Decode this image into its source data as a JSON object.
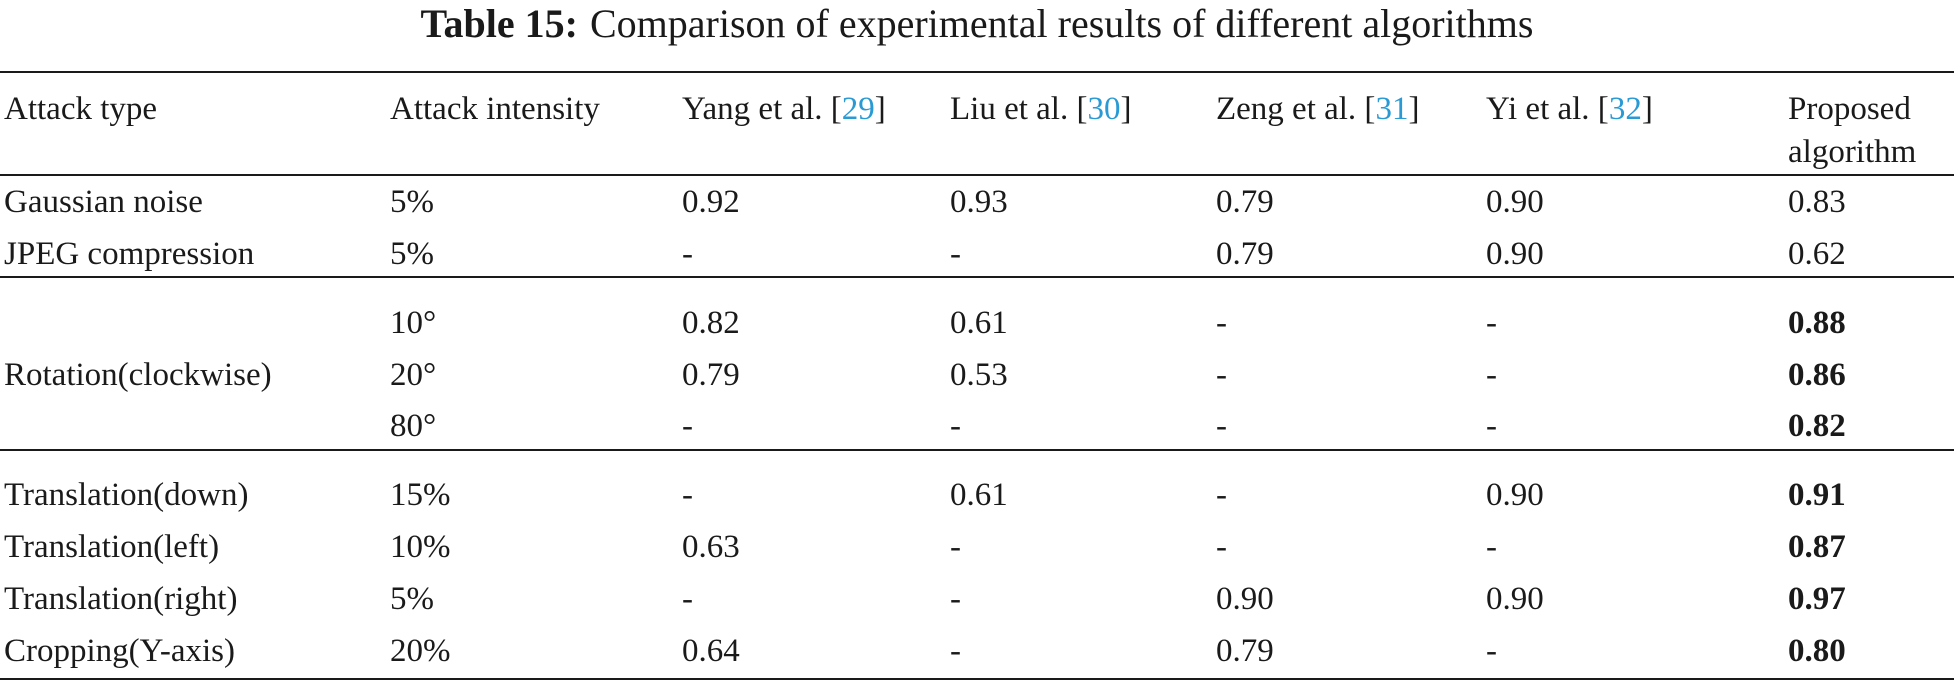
{
  "caption": {
    "label": "Table 15:",
    "text": "Comparison of experimental results of different algorithms"
  },
  "header": {
    "attack_type": "Attack type",
    "attack_intensity": "Attack intensity",
    "yang": {
      "name": "Yang et al. [",
      "ref": "29",
      "close": "]"
    },
    "liu": {
      "name": "Liu et al. [",
      "ref": "30",
      "close": "]"
    },
    "zeng": {
      "name": "Zeng et al. [",
      "ref": "31",
      "close": "]"
    },
    "yi": {
      "name": "Yi et al. [",
      "ref": "32",
      "close": "]"
    },
    "proposed_line1": "Proposed",
    "proposed_line2": "algorithm"
  },
  "rows": [
    {
      "type": "Gaussian noise",
      "intensity": "5%",
      "yang": "0.92",
      "liu": "0.93",
      "zeng": "0.79",
      "yi": "0.90",
      "proposed": "0.83",
      "proposed_bold": false
    },
    {
      "type": "JPEG compression",
      "intensity": "5%",
      "yang": "-",
      "liu": "-",
      "zeng": "0.79",
      "yi": "0.90",
      "proposed": "0.62",
      "proposed_bold": false
    },
    {
      "type": "",
      "intensity": "10°",
      "yang": "0.82",
      "liu": "0.61",
      "zeng": "-",
      "yi": "-",
      "proposed": "0.88",
      "proposed_bold": true
    },
    {
      "type": "Rotation(clockwise)",
      "intensity": "20°",
      "yang": "0.79",
      "liu": "0.53",
      "zeng": "-",
      "yi": "-",
      "proposed": "0.86",
      "proposed_bold": true
    },
    {
      "type": "",
      "intensity": "80°",
      "yang": "-",
      "liu": "-",
      "zeng": "-",
      "yi": "-",
      "proposed": "0.82",
      "proposed_bold": true
    },
    {
      "type": "Translation(down)",
      "intensity": "15%",
      "yang": "-",
      "liu": "0.61",
      "zeng": "-",
      "yi": "0.90",
      "proposed": "0.91",
      "proposed_bold": true
    },
    {
      "type": "Translation(left)",
      "intensity": "10%",
      "yang": "0.63",
      "liu": "-",
      "zeng": "-",
      "yi": "-",
      "proposed": "0.87",
      "proposed_bold": true
    },
    {
      "type": "Translation(right)",
      "intensity": "5%",
      "yang": "-",
      "liu": "-",
      "zeng": "0.90",
      "yi": "0.90",
      "proposed": "0.97",
      "proposed_bold": true
    },
    {
      "type": "Cropping(Y-axis)",
      "intensity": "20%",
      "yang": "0.64",
      "liu": "-",
      "zeng": "0.79",
      "yi": "-",
      "proposed": "0.80",
      "proposed_bold": true
    }
  ]
}
